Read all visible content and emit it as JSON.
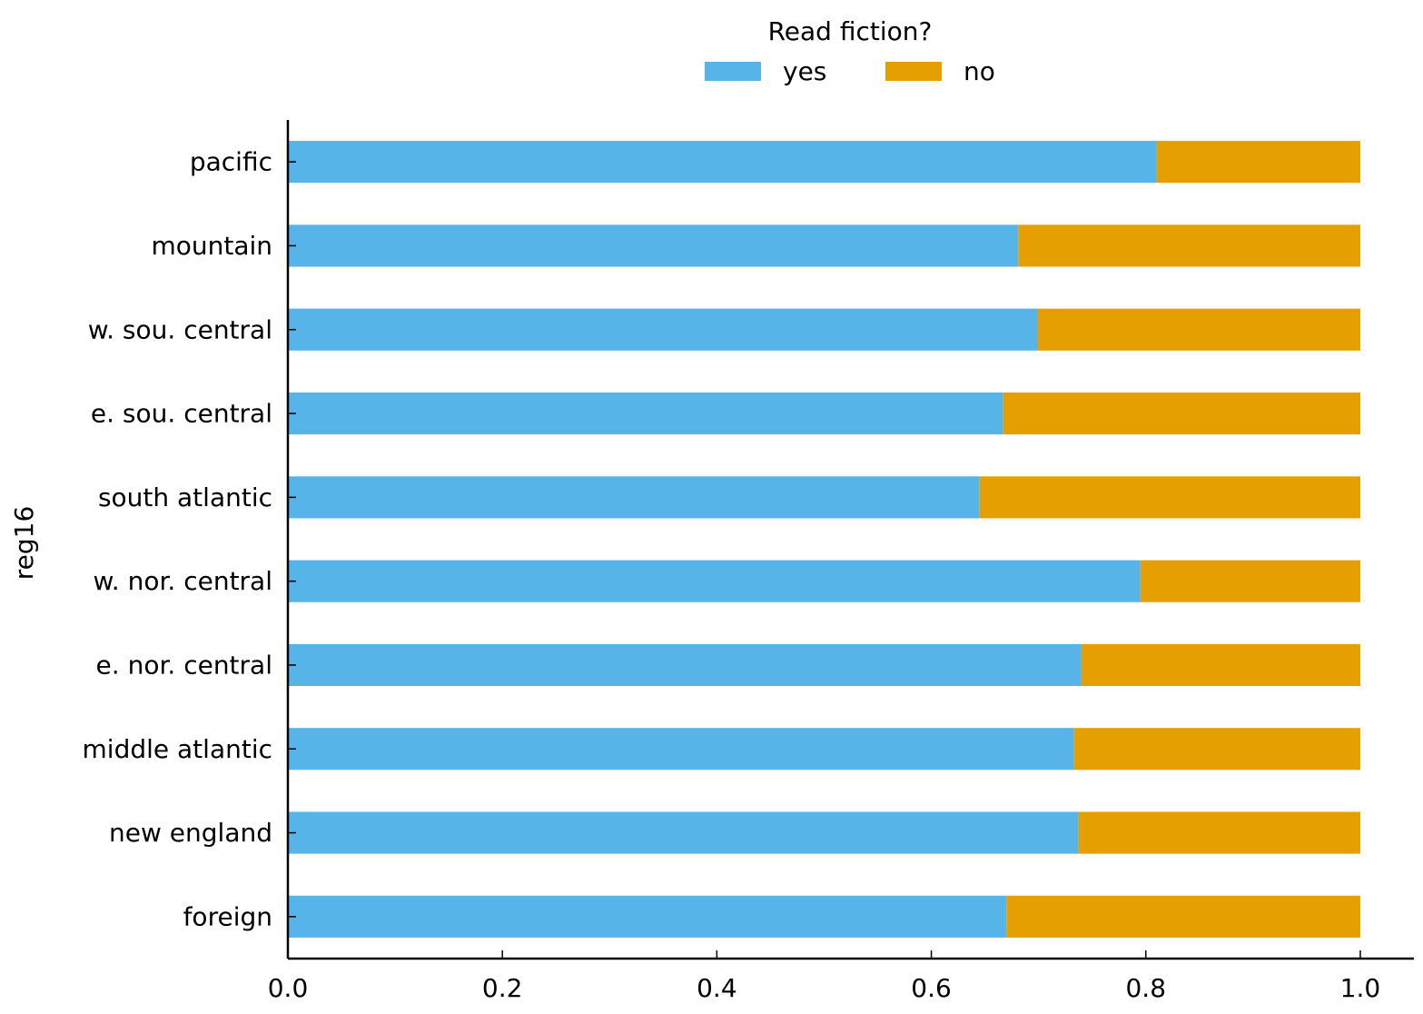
{
  "chart_data": {
    "type": "bar",
    "orientation": "horizontal",
    "stacked": true,
    "title": "",
    "xlabel": "",
    "ylabel": "reg16",
    "categories": [
      "foreign",
      "new england",
      "middle atlantic",
      "e. nor. central",
      "w. nor. central",
      "south atlantic",
      "e. sou. central",
      "w. sou. central",
      "mountain",
      "pacific"
    ],
    "series": [
      {
        "name": "yes",
        "color": "#56B4E9",
        "values": [
          0.67,
          0.737,
          0.733,
          0.74,
          0.795,
          0.645,
          0.667,
          0.699,
          0.681,
          0.81
        ]
      },
      {
        "name": "no",
        "color": "#E69F00",
        "values": [
          0.33,
          0.263,
          0.267,
          0.26,
          0.205,
          0.355,
          0.333,
          0.301,
          0.319,
          0.19
        ]
      }
    ],
    "xlim": [
      0.0,
      1.05
    ],
    "xticks": [
      "0.0",
      "0.2",
      "0.4",
      "0.6",
      "0.8",
      "1.0"
    ],
    "xtick_values": [
      0.0,
      0.2,
      0.4,
      0.6,
      0.8,
      1.0
    ],
    "legend": {
      "title": "Read fiction?",
      "placement": "top-center",
      "columns": 2,
      "entries": [
        "yes",
        "no"
      ]
    },
    "grid": false
  }
}
